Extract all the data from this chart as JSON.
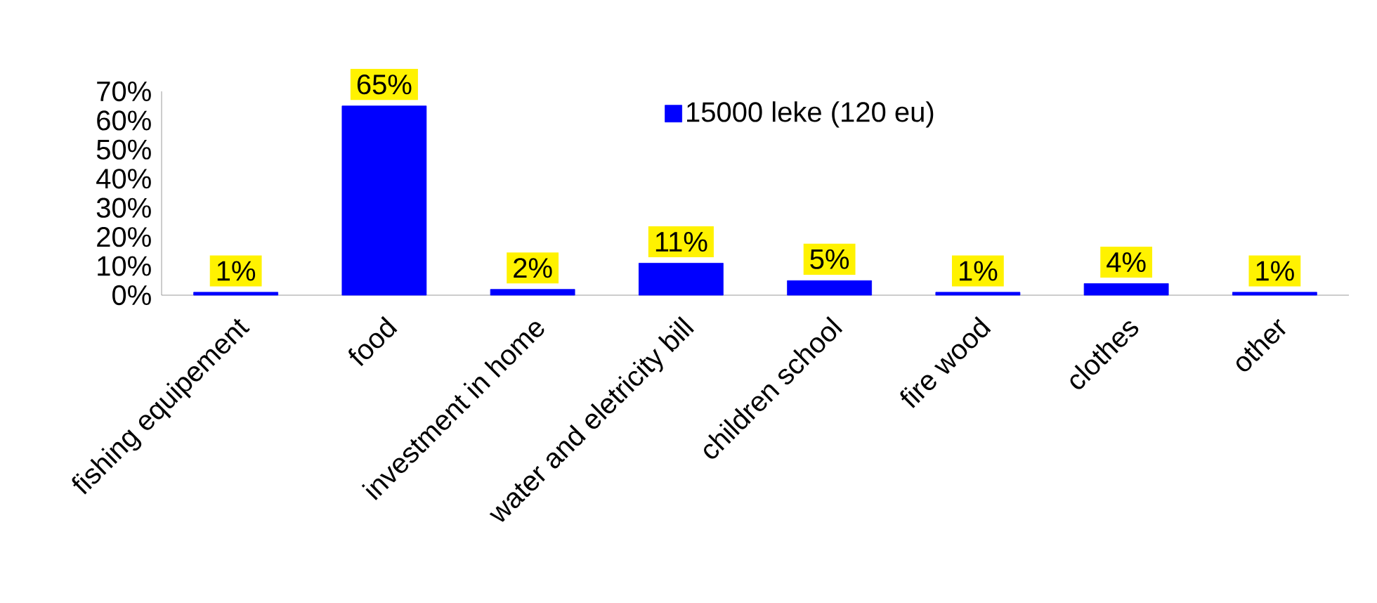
{
  "chart_data": {
    "type": "bar",
    "categories": [
      "fishing equipement",
      "food",
      "investment in home",
      "water and eletricity bill",
      "children school",
      "fire wood",
      "clothes",
      "other"
    ],
    "series": [
      {
        "name": "15000 leke (120 eu)",
        "color": "#0000ff",
        "values": [
          1,
          65,
          2,
          11,
          5,
          1,
          4,
          1
        ],
        "value_labels": [
          "1%",
          "65%",
          "2%",
          "11%",
          "5%",
          "1%",
          "4%",
          "1%"
        ]
      }
    ],
    "ylim": [
      0,
      70
    ],
    "yticks": [
      {
        "value": 0,
        "label": "0%"
      },
      {
        "value": 10,
        "label": "10%"
      },
      {
        "value": 20,
        "label": "20%"
      },
      {
        "value": 30,
        "label": "30%"
      },
      {
        "value": 40,
        "label": "40%"
      },
      {
        "value": 50,
        "label": "50%"
      },
      {
        "value": 60,
        "label": "60%"
      },
      {
        "value": 70,
        "label": "70%"
      }
    ],
    "legend": "top",
    "grid": false
  }
}
